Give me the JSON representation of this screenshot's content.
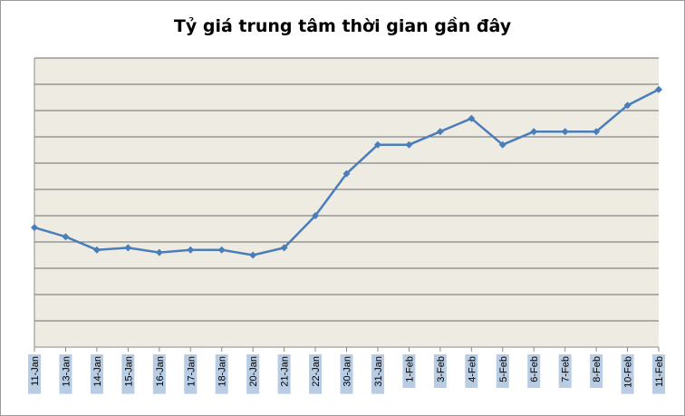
{
  "chart_data": {
    "type": "line",
    "title": "Tỷ giá trung tâm thời gian gần đây",
    "xlabel": "",
    "ylabel": "",
    "categories": [
      "11-Jan",
      "13-Jan",
      "14-Jan",
      "15-Jan",
      "16-Jan",
      "17-Jan",
      "18-Jan",
      "20-Jan",
      "21-Jan",
      "22-Jan",
      "30-Jan",
      "31-Jan",
      "1-Feb",
      "3-Feb",
      "4-Feb",
      "5-Feb",
      "6-Feb",
      "7-Feb",
      "8-Feb",
      "10-Feb",
      "11-Feb"
    ],
    "series": [
      {
        "values": [
          4.55,
          4.2,
          3.7,
          3.78,
          3.6,
          3.7,
          3.7,
          3.5,
          3.78,
          5.0,
          6.6,
          7.7,
          7.7,
          8.2,
          8.7,
          7.7,
          8.2,
          8.2,
          8.2,
          9.2,
          9.8
        ]
      }
    ],
    "ylim": [
      0,
      11
    ],
    "y_gridlines": 11,
    "y_tick_labels_visible": false,
    "grid": true,
    "legend": "none",
    "colors": {
      "line": "#4a7ebb",
      "plot_background": "#eeebe2",
      "gridline": "#6e6e6e",
      "tick_label_highlight": "#b8cce4"
    }
  }
}
